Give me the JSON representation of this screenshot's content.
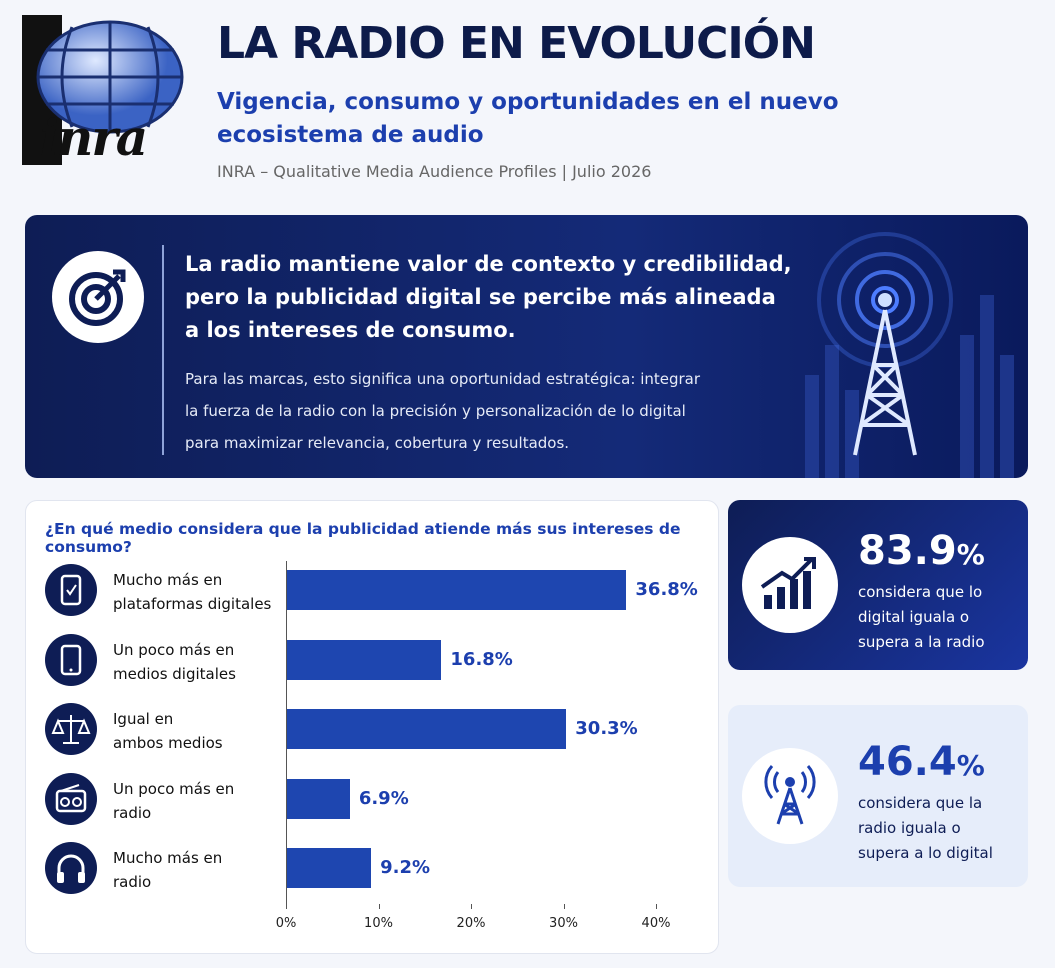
{
  "header": {
    "logo": "inra",
    "title": "LA RADIO EN EVOLUCIÓN",
    "subtitle": "Vigencia, consumo y oportunidades en el nuevo\necosistema de audio",
    "source": "INRA – Qualitative Media Audience Profiles | Julio 2026"
  },
  "banner": {
    "headline": "La radio mantiene valor de contexto y credibilidad,\npero la publicidad digital se percibe más alineada\na los intereses de consumo.",
    "body": "Para las marcas, esto significa una oportunidad estratégica: integrar\nla fuerza de la radio con la precisión y personalización de lo digital\npara maximizar relevancia, cobertura y resultados."
  },
  "chart_data": {
    "type": "bar",
    "orientation": "horizontal",
    "title": "¿En qué medio considera que la publicidad atiende más sus intereses de consumo?",
    "categories": [
      "Mucho más en\nplataformas digitales",
      "Un poco más en\nmedios digitales",
      "Igual en\nambos medios",
      "Un poco más en\nradio",
      "Mucho más en\nradio"
    ],
    "values": [
      36.8,
      16.8,
      30.3,
      6.9,
      9.2
    ],
    "value_labels": [
      "36.8%",
      "16.8%",
      "30.3%",
      "6.9%",
      "9.2%"
    ],
    "color": "#1e46b0",
    "xlim": [
      0,
      40
    ],
    "xticks": [
      {
        "value": 0,
        "label": "0%"
      },
      {
        "value": 10,
        "label": "10%"
      },
      {
        "value": 20,
        "label": "20%"
      },
      {
        "value": 30,
        "label": "30%"
      },
      {
        "value": 40,
        "label": "40%"
      }
    ]
  },
  "stats": [
    {
      "value": 83.9,
      "unit": "%",
      "text": "considera que lo\ndigital iguala o\nsupera a la radio"
    },
    {
      "value": 46.4,
      "unit": "%",
      "text": "considera que la\nradio iguala o\nsupera a lo digital"
    }
  ]
}
